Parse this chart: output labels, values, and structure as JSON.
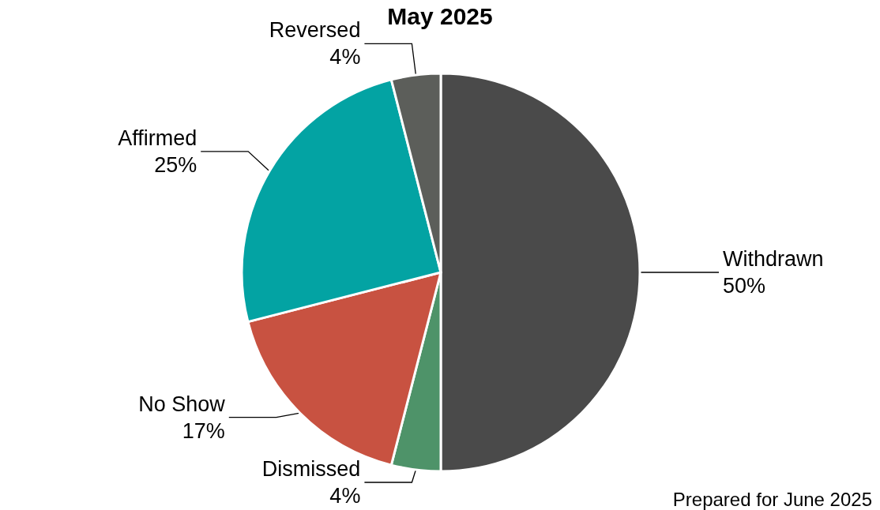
{
  "chart_data": {
    "type": "pie",
    "title": "May 2025",
    "categories": [
      "Withdrawn",
      "Dismissed",
      "No Show",
      "Affirmed",
      "Reversed"
    ],
    "values": [
      50,
      4,
      17,
      25,
      4
    ],
    "value_labels": [
      "50%",
      "4%",
      "17%",
      "25%",
      "4%"
    ],
    "colors": [
      "#4a4a4a",
      "#4e9369",
      "#c85241",
      "#03a3a3",
      "#5c5e5a"
    ],
    "legend": false,
    "annotations": [
      "Prepared for June 2025"
    ]
  }
}
